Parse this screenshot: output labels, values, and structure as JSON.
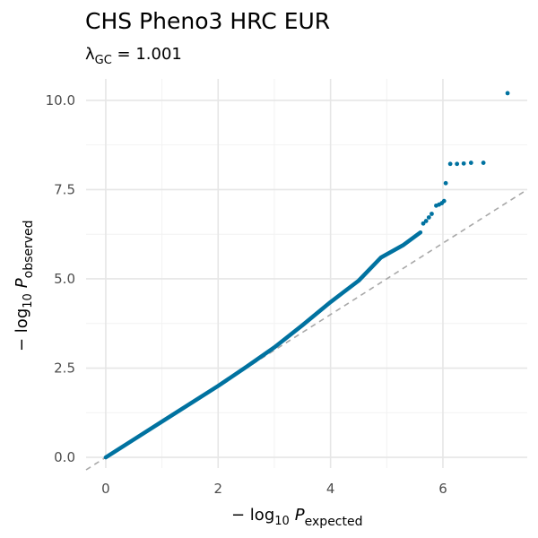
{
  "chart_data": {
    "type": "scatter",
    "title": "CHS Pheno3 HRC EUR",
    "subtitle": {
      "symbol": "λ",
      "subscript": "GC",
      "equals": " = ",
      "value": "1.001"
    },
    "xlabel": {
      "prefix": "− log",
      "base": "10",
      "variable": "P",
      "subscript": "expected"
    },
    "ylabel": {
      "prefix": "− log",
      "base": "10",
      "variable": "P",
      "subscript": "observed"
    },
    "xlim": [
      -0.35,
      7.5
    ],
    "ylim": [
      -0.3,
      10.6
    ],
    "x_ticks": [
      0,
      2,
      4,
      6
    ],
    "x_tick_labels": [
      "0",
      "2",
      "4",
      "6"
    ],
    "y_ticks": [
      0.0,
      2.5,
      5.0,
      7.5,
      10.0
    ],
    "y_tick_labels": [
      "0.0",
      "2.5",
      "5.0",
      "7.5",
      "10.0"
    ],
    "grid": true,
    "reference_line": "y = x",
    "point_color": "#0072a0",
    "curve": [
      [
        0,
        0
      ],
      [
        0.5,
        0.5
      ],
      [
        1.0,
        1.0
      ],
      [
        1.5,
        1.5
      ],
      [
        2.0,
        2.0
      ],
      [
        2.5,
        2.53
      ],
      [
        3.0,
        3.08
      ],
      [
        3.5,
        3.7
      ],
      [
        4.0,
        4.35
      ],
      [
        4.5,
        4.95
      ],
      [
        4.9,
        5.6
      ],
      [
        5.3,
        5.95
      ],
      [
        5.6,
        6.3
      ]
    ],
    "points": [
      [
        5.65,
        6.55
      ],
      [
        5.7,
        6.62
      ],
      [
        5.75,
        6.72
      ],
      [
        5.8,
        6.82
      ],
      [
        5.88,
        7.05
      ],
      [
        5.93,
        7.08
      ],
      [
        5.98,
        7.12
      ],
      [
        6.02,
        7.18
      ],
      [
        6.05,
        7.68
      ],
      [
        6.13,
        8.22
      ],
      [
        6.25,
        8.22
      ],
      [
        6.37,
        8.23
      ],
      [
        6.5,
        8.25
      ],
      [
        6.72,
        8.25
      ],
      [
        7.15,
        10.2
      ]
    ]
  }
}
